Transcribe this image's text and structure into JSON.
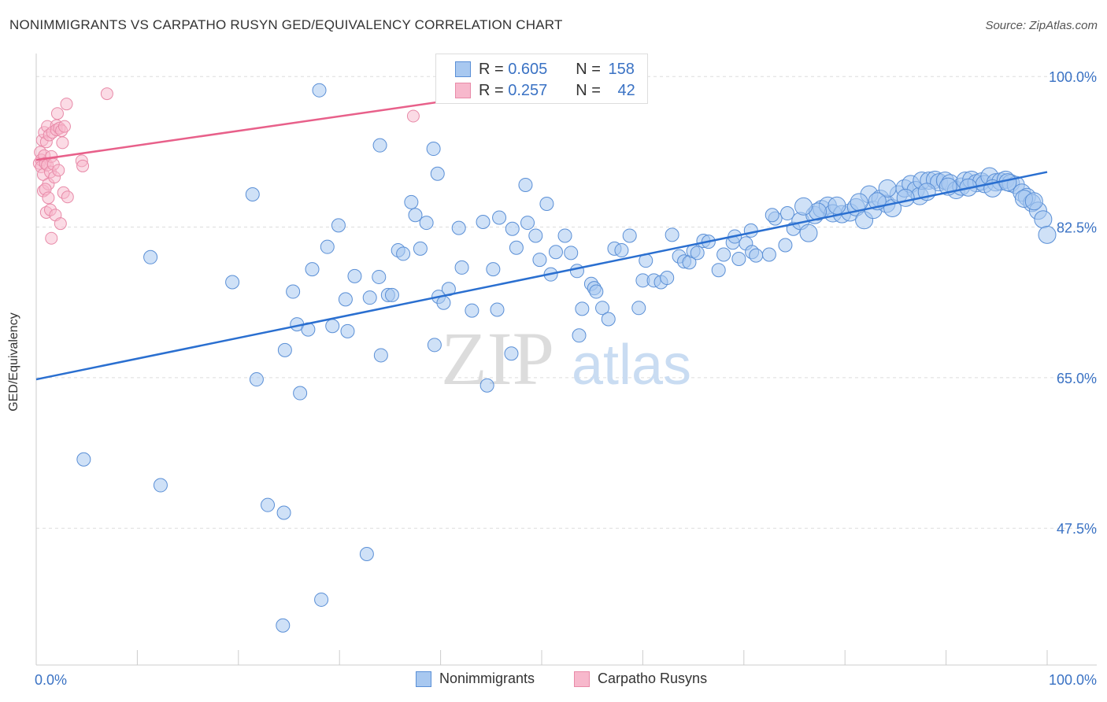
{
  "title": "NONIMMIGRANTS VS CARPATHO RUSYN GED/EQUIVALENCY CORRELATION CHART",
  "source": "Source: ZipAtlas.com",
  "watermark": {
    "zip": "ZIP",
    "atlas": "atlas"
  },
  "colors": {
    "blue_fill": "#a8c8f0",
    "blue_stroke": "#5a8fd6",
    "blue_line": "#2a6fd0",
    "pink_fill": "#f7b8cc",
    "pink_stroke": "#e88aa8",
    "pink_line": "#e8608a",
    "tick_label": "#3a72c4",
    "grid": "#dddddd"
  },
  "legend_top": {
    "rows": [
      {
        "r_label": "R = ",
        "r_value": "0.605",
        "n_label": "N = ",
        "n_value": "158"
      },
      {
        "r_label": "R = ",
        "r_value": "0.257",
        "n_label": "N = ",
        "n_value": "42"
      }
    ]
  },
  "legend_bottom": {
    "series1": "Nonimmigrants",
    "series2": "Carpatho Rusyns"
  },
  "chart_data": {
    "type": "scatter",
    "title": "NONIMMIGRANTS VS CARPATHO RUSYN GED/EQUIVALENCY CORRELATION CHART",
    "xlabel": "",
    "ylabel": "GED/Equivalency",
    "xlim": [
      0,
      100
    ],
    "ylim": [
      34,
      102
    ],
    "x_tick_labels": [
      "0.0%",
      "100.0%"
    ],
    "y_ticks": [
      47.5,
      65.0,
      82.5,
      100.0
    ],
    "y_tick_labels": [
      "47.5%",
      "65.0%",
      "82.5%",
      "100.0%"
    ],
    "grid": "horizontal dashed",
    "legend_placement": "top-center and bottom",
    "series": [
      {
        "name": "Nonimmigrants",
        "color": "#a8c8f0",
        "trend": {
          "x": [
            0,
            100
          ],
          "y": [
            64.8,
            88.9
          ]
        },
        "points": [
          [
            4.7,
            55.5
          ],
          [
            12.3,
            52.5
          ],
          [
            11.3,
            79.0
          ],
          [
            19.4,
            76.1
          ],
          [
            21.4,
            86.3
          ],
          [
            21.8,
            64.8
          ],
          [
            22.9,
            50.2
          ],
          [
            24.5,
            49.3
          ],
          [
            24.6,
            68.2
          ],
          [
            25.4,
            75.0
          ],
          [
            25.8,
            71.2
          ],
          [
            26.1,
            63.2
          ],
          [
            26.9,
            70.6
          ],
          [
            27.3,
            77.6
          ],
          [
            28.2,
            39.2
          ],
          [
            28.0,
            98.4
          ],
          [
            28.8,
            80.2
          ],
          [
            29.3,
            71.0
          ],
          [
            29.9,
            82.7
          ],
          [
            30.6,
            74.1
          ],
          [
            30.8,
            70.4
          ],
          [
            31.5,
            76.8
          ],
          [
            32.7,
            44.5
          ],
          [
            33.0,
            74.3
          ],
          [
            33.9,
            76.7
          ],
          [
            34.0,
            92.0
          ],
          [
            34.1,
            67.6
          ],
          [
            34.8,
            74.6
          ],
          [
            35.2,
            74.6
          ],
          [
            35.8,
            79.8
          ],
          [
            36.3,
            79.4
          ],
          [
            37.1,
            85.4
          ],
          [
            37.5,
            83.9
          ],
          [
            38.0,
            80.0
          ],
          [
            38.6,
            83.0
          ],
          [
            39.3,
            91.6
          ],
          [
            39.4,
            68.8
          ],
          [
            39.7,
            88.7
          ],
          [
            39.8,
            74.4
          ],
          [
            40.3,
            73.7
          ],
          [
            40.8,
            75.3
          ],
          [
            41.8,
            82.4
          ],
          [
            42.1,
            77.8
          ],
          [
            43.1,
            72.8
          ],
          [
            44.6,
            64.1
          ],
          [
            44.2,
            83.1
          ],
          [
            45.2,
            77.6
          ],
          [
            45.6,
            72.9
          ],
          [
            45.8,
            83.6
          ],
          [
            47.0,
            67.8
          ],
          [
            47.1,
            82.3
          ],
          [
            47.5,
            80.1
          ],
          [
            48.4,
            87.4
          ],
          [
            48.6,
            83.0
          ],
          [
            49.4,
            81.5
          ],
          [
            49.8,
            78.7
          ],
          [
            50.5,
            85.2
          ],
          [
            50.9,
            77.0
          ],
          [
            51.4,
            79.6
          ],
          [
            52.3,
            81.5
          ],
          [
            52.9,
            79.5
          ],
          [
            53.5,
            77.4
          ],
          [
            53.7,
            69.9
          ],
          [
            54.0,
            73.0
          ],
          [
            54.9,
            75.9
          ],
          [
            55.2,
            75.4
          ],
          [
            55.4,
            75.0
          ],
          [
            56.0,
            73.1
          ],
          [
            56.6,
            71.8
          ],
          [
            57.2,
            80.0
          ],
          [
            57.9,
            79.8
          ],
          [
            58.7,
            81.5
          ],
          [
            59.6,
            73.1
          ],
          [
            60.0,
            76.3
          ],
          [
            60.3,
            78.6
          ],
          [
            61.1,
            76.3
          ],
          [
            61.8,
            76.1
          ],
          [
            62.4,
            76.6
          ],
          [
            62.9,
            81.6
          ],
          [
            63.6,
            79.1
          ],
          [
            64.1,
            78.5
          ],
          [
            64.6,
            78.4
          ],
          [
            65.0,
            79.7
          ],
          [
            65.4,
            79.5
          ],
          [
            66.0,
            80.9
          ],
          [
            66.5,
            80.8
          ],
          [
            67.5,
            77.5
          ],
          [
            68.0,
            79.3
          ],
          [
            68.9,
            80.7
          ],
          [
            69.5,
            78.8
          ],
          [
            70.2,
            80.6
          ],
          [
            70.8,
            79.6
          ],
          [
            71.2,
            79.2
          ],
          [
            72.5,
            79.3
          ],
          [
            73.1,
            83.5
          ],
          [
            74.1,
            80.4
          ],
          [
            74.9,
            82.3
          ],
          [
            75.6,
            83.2
          ],
          [
            76.4,
            81.8
          ],
          [
            77.0,
            83.9
          ],
          [
            77.7,
            84.6
          ],
          [
            78.3,
            85.0
          ],
          [
            78.8,
            84.1
          ],
          [
            79.7,
            84.0
          ],
          [
            80.5,
            84.2
          ],
          [
            81.1,
            84.8
          ],
          [
            81.9,
            83.3
          ],
          [
            82.4,
            86.3
          ],
          [
            82.8,
            84.5
          ],
          [
            83.5,
            85.8
          ],
          [
            84.1,
            85.2
          ],
          [
            84.7,
            84.7
          ],
          [
            85.3,
            86.3
          ],
          [
            85.9,
            87.0
          ],
          [
            86.5,
            87.5
          ],
          [
            87.0,
            86.8
          ],
          [
            87.4,
            86.1
          ],
          [
            87.6,
            87.9
          ],
          [
            88.3,
            87.9
          ],
          [
            88.9,
            88.0
          ],
          [
            89.3,
            87.7
          ],
          [
            89.9,
            87.9
          ],
          [
            90.4,
            87.6
          ],
          [
            91.0,
            86.8
          ],
          [
            91.5,
            87.2
          ],
          [
            91.9,
            87.9
          ],
          [
            92.5,
            88.0
          ],
          [
            93.0,
            87.6
          ],
          [
            93.5,
            87.8
          ],
          [
            93.8,
            87.5
          ],
          [
            94.3,
            88.4
          ],
          [
            94.9,
            87.7
          ],
          [
            95.4,
            87.8
          ],
          [
            95.9,
            88.0
          ],
          [
            96.4,
            87.6
          ],
          [
            96.9,
            87.4
          ],
          [
            97.5,
            86.5
          ],
          [
            98.0,
            86.0
          ],
          [
            98.5,
            85.3
          ],
          [
            99.1,
            84.4
          ],
          [
            99.6,
            83.4
          ],
          [
            100.0,
            81.6
          ],
          [
            84.2,
            87.0
          ],
          [
            86.0,
            85.9
          ],
          [
            88.1,
            86.6
          ],
          [
            90.2,
            87.2
          ],
          [
            92.2,
            87.1
          ],
          [
            94.6,
            87.0
          ],
          [
            96.1,
            87.7
          ],
          [
            97.7,
            85.8
          ],
          [
            98.7,
            85.5
          ],
          [
            83.2,
            85.5
          ],
          [
            81.4,
            85.4
          ],
          [
            79.2,
            85.0
          ],
          [
            77.3,
            84.3
          ],
          [
            75.9,
            84.9
          ],
          [
            74.3,
            84.1
          ],
          [
            72.8,
            83.9
          ],
          [
            70.7,
            82.1
          ],
          [
            69.1,
            81.4
          ],
          [
            24.4,
            36.2
          ]
        ]
      },
      {
        "name": "Carpatho Rusyns",
        "color": "#f7b8cc",
        "trend": {
          "x": [
            0,
            40.8
          ],
          "y": [
            90.3,
            97.2
          ]
        },
        "points": [
          [
            0.3,
            89.9
          ],
          [
            0.4,
            91.2
          ],
          [
            0.5,
            90.3
          ],
          [
            0.5,
            89.5
          ],
          [
            0.6,
            92.6
          ],
          [
            0.7,
            88.6
          ],
          [
            0.7,
            86.7
          ],
          [
            0.8,
            93.5
          ],
          [
            0.8,
            90.8
          ],
          [
            0.9,
            89.9
          ],
          [
            1.0,
            92.4
          ],
          [
            1.0,
            84.2
          ],
          [
            1.1,
            94.2
          ],
          [
            1.1,
            89.7
          ],
          [
            1.2,
            87.5
          ],
          [
            1.3,
            93.2
          ],
          [
            1.4,
            84.5
          ],
          [
            1.4,
            88.9
          ],
          [
            1.5,
            90.7
          ],
          [
            1.5,
            81.2
          ],
          [
            1.6,
            93.5
          ],
          [
            1.7,
            89.8
          ],
          [
            1.8,
            88.3
          ],
          [
            1.9,
            83.9
          ],
          [
            2.0,
            94.3
          ],
          [
            2.0,
            93.8
          ],
          [
            2.1,
            95.7
          ],
          [
            2.2,
            89.1
          ],
          [
            2.3,
            94.0
          ],
          [
            2.4,
            82.9
          ],
          [
            2.5,
            93.7
          ],
          [
            2.6,
            92.3
          ],
          [
            2.7,
            86.5
          ],
          [
            2.8,
            94.2
          ],
          [
            3.0,
            96.8
          ],
          [
            3.1,
            86.0
          ],
          [
            4.5,
            90.2
          ],
          [
            4.6,
            89.6
          ],
          [
            7.0,
            98.0
          ],
          [
            37.3,
            95.4
          ],
          [
            0.9,
            86.9
          ],
          [
            1.2,
            85.9
          ]
        ]
      }
    ]
  }
}
